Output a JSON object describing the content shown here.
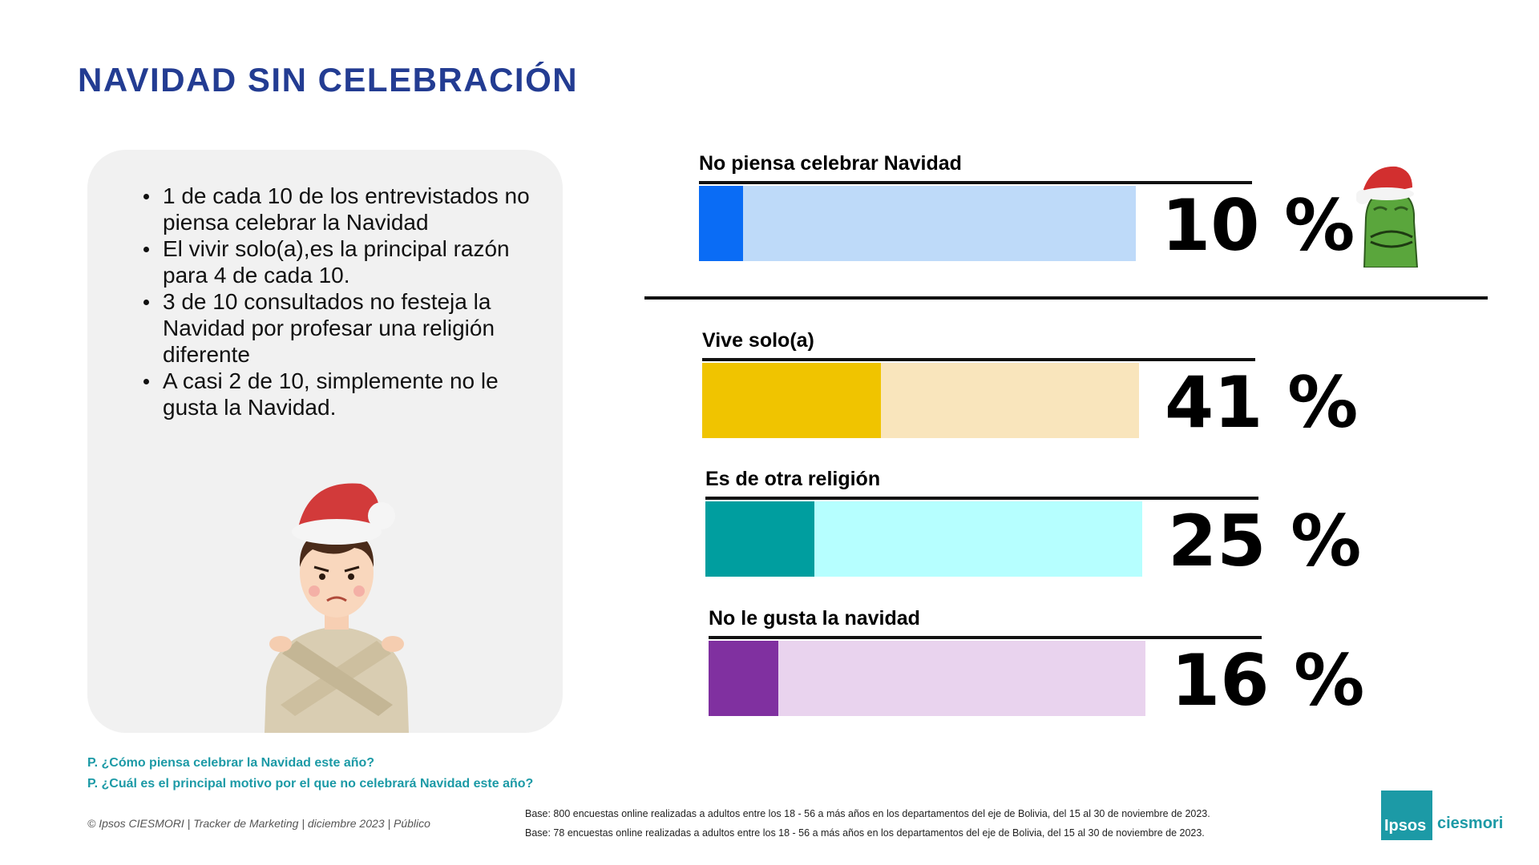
{
  "title": "NAVIDAD SIN CELEBRACIÓN",
  "bullets": [
    "1 de cada 10 de los entrevistados no piensa celebrar la Navidad",
    "El vivir solo(a),es la principal razón para 4 de cada 10.",
    "3 de 10 consultados no festeja la Navidad por profesar una religión diferente",
    "A casi 2 de 10, simplemente no le gusta la Navidad."
  ],
  "chart_data": {
    "type": "bar",
    "categories": [
      "No piensa celebrar Navidad",
      "Vive solo(a)",
      "Es de otra religión",
      "No le gusta la navidad"
    ],
    "values": [
      10,
      41,
      25,
      16
    ],
    "value_labels": [
      "10 %",
      "41 %",
      "25 %",
      "16 %"
    ],
    "unit": "%",
    "xlim": [
      0,
      100
    ],
    "fill_colors": [
      "#0a6cf5",
      "#f0c400",
      "#009e9f",
      "#8030a0"
    ],
    "track_colors": [
      "#bedaf9",
      "#f9e5bc",
      "#b6ffff",
      "#e9d3ee"
    ],
    "grid": false
  },
  "questions": [
    "P. ¿Cómo piensa celebrar la Navidad este año?",
    "P. ¿Cuál es el principal motivo por el que no celebrará Navidad este año?"
  ],
  "footer": {
    "copyright": "© Ipsos CIESMORI | Tracker de Marketing | diciembre 2023 | Público",
    "base_lines": [
      "Base: 800 encuestas online realizadas a adultos entre los 18 - 56 a más años en los departamentos del eje de Bolivia, del 15 al 30 de noviembre de 2023.",
      "Base: 78 encuestas online realizadas a adultos entre los 18 - 56 a más años en los departamentos del eje de Bolivia, del 15 al 30 de noviembre de 2023."
    ]
  },
  "logo": {
    "box_text": "Ipsos",
    "text": "ciesmori"
  },
  "icons": {
    "person": "person-crossed-arms-santa-hat-icon",
    "grinch": "grinch-santa-hat-icon"
  }
}
